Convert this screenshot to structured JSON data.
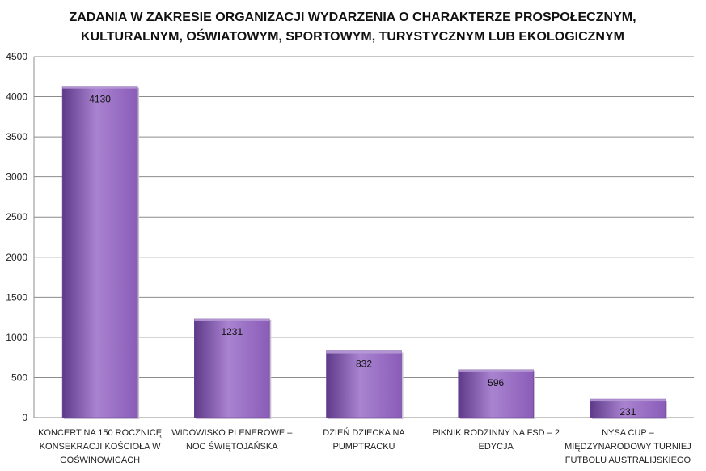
{
  "chart_data": {
    "type": "bar",
    "title": [
      "ZADANIA W ZAKRESIE ORGANIZACJI WYDARZENIA O CHARAKTERZE PROSPOŁECZNYM,",
      "KULTURALNYM, OŚWIATOWYM, SPORTOWYM, TURYSTYCZNYM LUB EKOLOGICZNYM"
    ],
    "categories": [
      [
        "KONCERT NA 150 ROCZNICĘ",
        "KONSEKRACJI KOŚCIOŁA W",
        "GOŚWINOWICACH"
      ],
      [
        "WIDOWISKO PLENEROWE –",
        "NOC ŚWIĘTOJAŃSKA"
      ],
      [
        "DZIEŃ DZIECKA NA",
        "PUMPTRACKU"
      ],
      [
        "PIKNIK RODZINNY NA FSD – 2",
        "EDYCJA"
      ],
      [
        "NYSA CUP –",
        "MIĘDZYNARODOWY TURNIEJ",
        "FUTBOLU AUSTRALIJSKIEGO"
      ]
    ],
    "values": [
      4130,
      1231,
      832,
      596,
      231
    ],
    "data_labels": [
      "4130",
      "1231",
      "832",
      "596",
      "231"
    ],
    "ylim": [
      0,
      4500
    ],
    "yticks": [
      0,
      500,
      1000,
      1500,
      2000,
      2500,
      3000,
      3500,
      4000,
      4500
    ],
    "grid": true,
    "legend": "none",
    "bar_color": "#8a5cb8",
    "bar_color_dark": "#5e3a8a",
    "bar_color_light": "#a983d0"
  }
}
